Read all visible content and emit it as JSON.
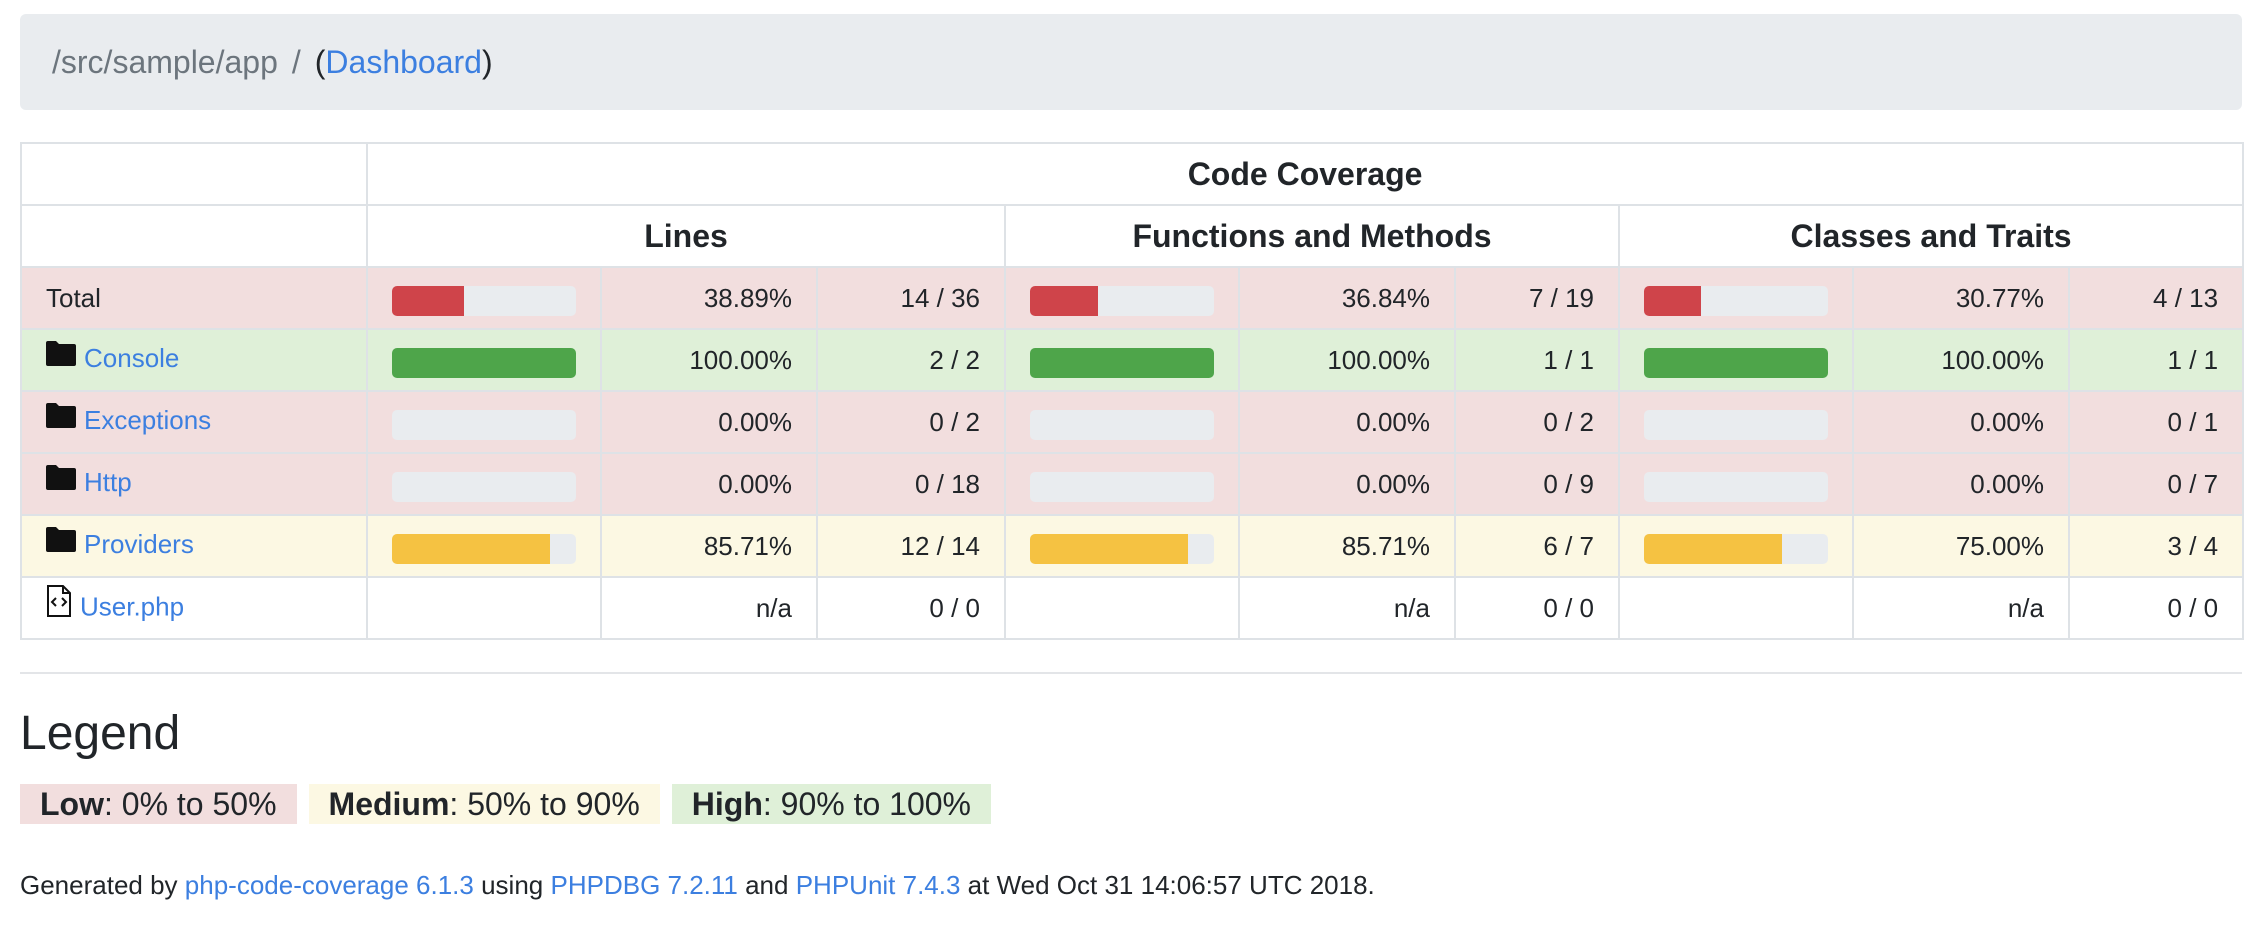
{
  "breadcrumb": {
    "path": "/src/sample/app",
    "separator": "/",
    "link_label": "Dashboard",
    "open_paren": "(",
    "close_paren": ")"
  },
  "table": {
    "title": "Code Coverage",
    "columns": [
      "Lines",
      "Functions and Methods",
      "Classes and Traits"
    ]
  },
  "colors": {
    "low": "#cf444a",
    "medium": "#f5c242",
    "high": "#4ea54a",
    "track": "#e9ecef"
  },
  "rows": [
    {
      "name": "Total",
      "type": "total",
      "level": "low",
      "lines": {
        "fraction": 0.3889,
        "pct": "38.89%",
        "count": "14 / 36"
      },
      "functions": {
        "fraction": 0.3684,
        "pct": "36.84%",
        "count": "7 / 19"
      },
      "classes": {
        "fraction": 0.3077,
        "pct": "30.77%",
        "count": "4 / 13"
      }
    },
    {
      "name": "Console",
      "type": "folder",
      "icon": "folder-icon",
      "level": "high",
      "lines": {
        "fraction": 1.0,
        "pct": "100.00%",
        "count": "2 / 2"
      },
      "functions": {
        "fraction": 1.0,
        "pct": "100.00%",
        "count": "1 / 1"
      },
      "classes": {
        "fraction": 1.0,
        "pct": "100.00%",
        "count": "1 / 1"
      }
    },
    {
      "name": "Exceptions",
      "type": "folder",
      "icon": "folder-icon",
      "level": "low",
      "lines": {
        "fraction": 0.0,
        "pct": "0.00%",
        "count": "0 / 2"
      },
      "functions": {
        "fraction": 0.0,
        "pct": "0.00%",
        "count": "0 / 2"
      },
      "classes": {
        "fraction": 0.0,
        "pct": "0.00%",
        "count": "0 / 1"
      }
    },
    {
      "name": "Http",
      "type": "folder",
      "icon": "folder-icon",
      "level": "low",
      "lines": {
        "fraction": 0.0,
        "pct": "0.00%",
        "count": "0 / 18"
      },
      "functions": {
        "fraction": 0.0,
        "pct": "0.00%",
        "count": "0 / 9"
      },
      "classes": {
        "fraction": 0.0,
        "pct": "0.00%",
        "count": "0 / 7"
      }
    },
    {
      "name": "Providers",
      "type": "folder",
      "icon": "folder-icon",
      "level": "medium",
      "lines": {
        "fraction": 0.8571,
        "pct": "85.71%",
        "count": "12 / 14"
      },
      "functions": {
        "fraction": 0.8571,
        "pct": "85.71%",
        "count": "6 / 7"
      },
      "classes": {
        "fraction": 0.75,
        "pct": "75.00%",
        "count": "3 / 4"
      }
    },
    {
      "name": "User.php",
      "type": "file",
      "icon": "code-file-icon",
      "level": "na",
      "lines": {
        "fraction": null,
        "pct": "n/a",
        "count": "0 / 0"
      },
      "functions": {
        "fraction": null,
        "pct": "n/a",
        "count": "0 / 0"
      },
      "classes": {
        "fraction": null,
        "pct": "n/a",
        "count": "0 / 0"
      }
    }
  ],
  "legend": {
    "title": "Legend",
    "low": {
      "label": "Low",
      "range": ": 0% to 50%"
    },
    "medium": {
      "label": "Medium",
      "range": ": 50% to 90%"
    },
    "high": {
      "label": "High",
      "range": ": 90% to 100%"
    }
  },
  "footer": {
    "generated_by": "Generated by ",
    "tool": "php-code-coverage 6.1.3",
    "using": " using ",
    "runtime": "PHPDBG 7.2.11",
    "and": " and ",
    "phpunit": "PHPUnit 7.4.3",
    "at": " at Wed Oct 31 14:06:57 UTC 2018."
  }
}
